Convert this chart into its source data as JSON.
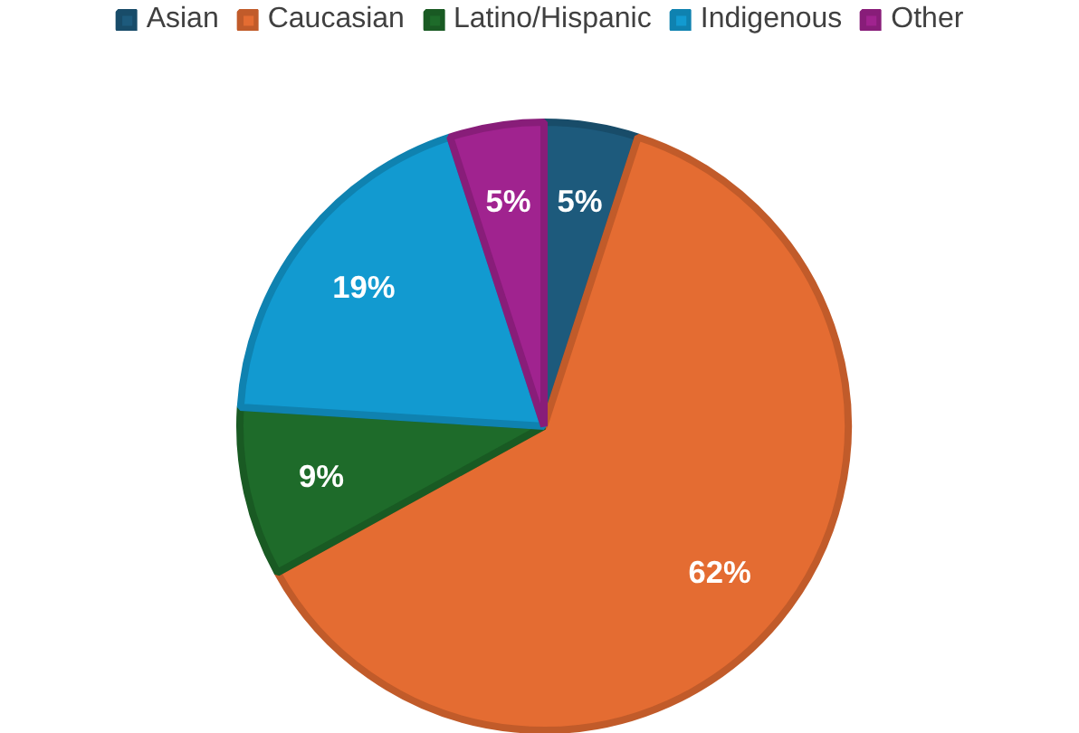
{
  "chart_data": {
    "type": "pie",
    "categories": [
      "Asian",
      "Caucasian",
      "Latino/Hispanic",
      "Indigenous",
      "Other"
    ],
    "values": [
      5,
      62,
      9,
      19,
      5
    ],
    "colors": [
      "#1d5a7c",
      "#e46c32",
      "#1e6b2a",
      "#129ad0",
      "#a0238f"
    ],
    "value_labels": [
      "5%",
      "62%",
      "9%",
      "19%",
      "5%"
    ],
    "legend": "top"
  }
}
